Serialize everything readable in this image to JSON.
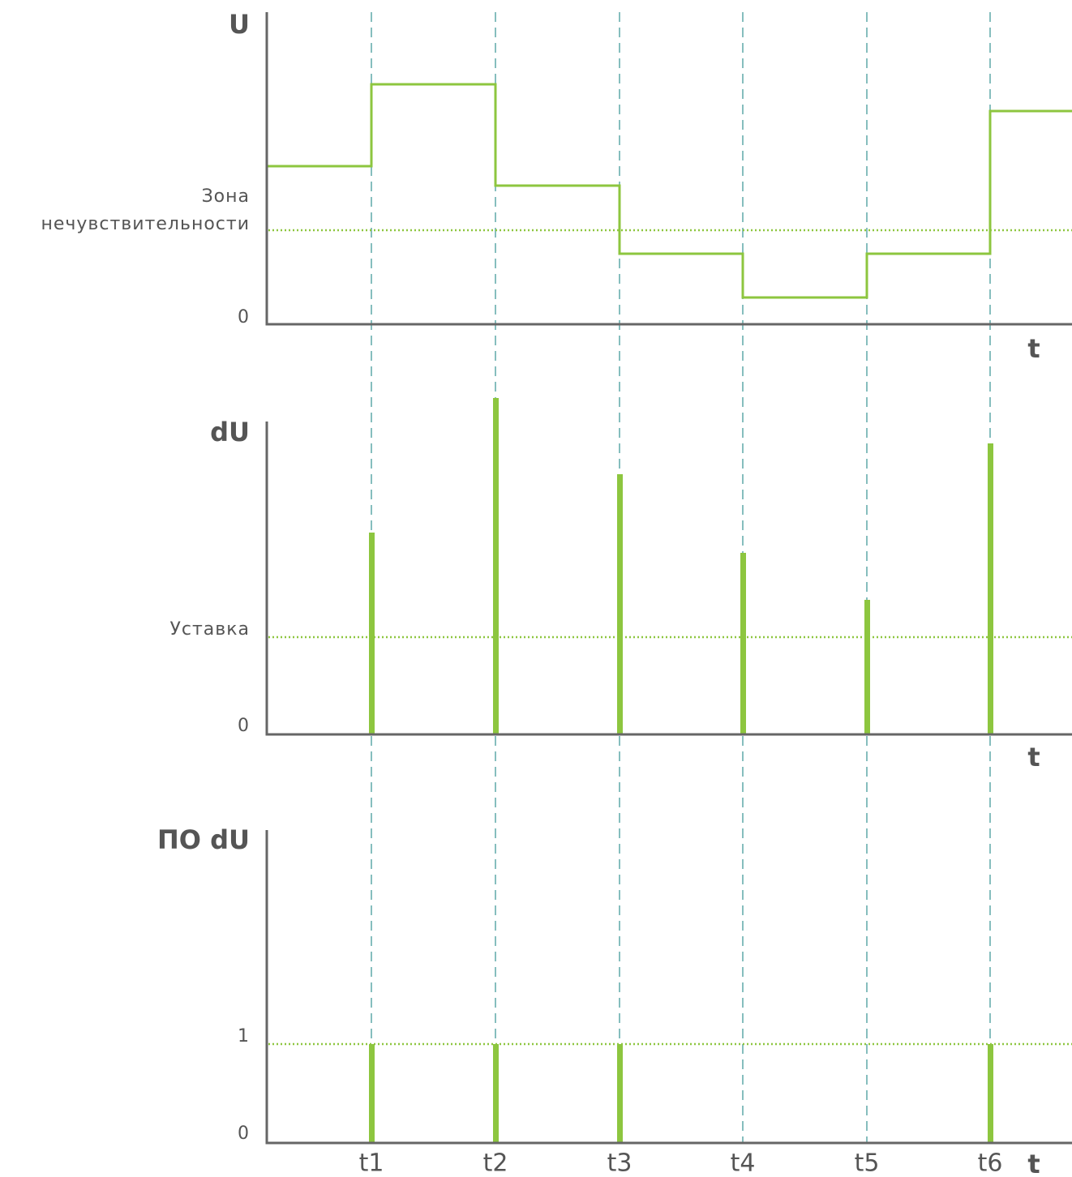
{
  "panels": [
    {
      "axis_label": "U",
      "zero_label": "0",
      "time_label": "t",
      "threshold_label": [
        "Зона",
        "нечувствительности"
      ]
    },
    {
      "axis_label": "dU",
      "zero_label": "0",
      "time_label": "t",
      "threshold_label": [
        "Уставка"
      ]
    },
    {
      "axis_label": "ПО dU",
      "zero_label": "0",
      "time_label": "t",
      "threshold_label": [
        "1"
      ]
    }
  ],
  "time_ticks": [
    "t1",
    "t2",
    "t3",
    "t4",
    "t5",
    "t6"
  ]
}
